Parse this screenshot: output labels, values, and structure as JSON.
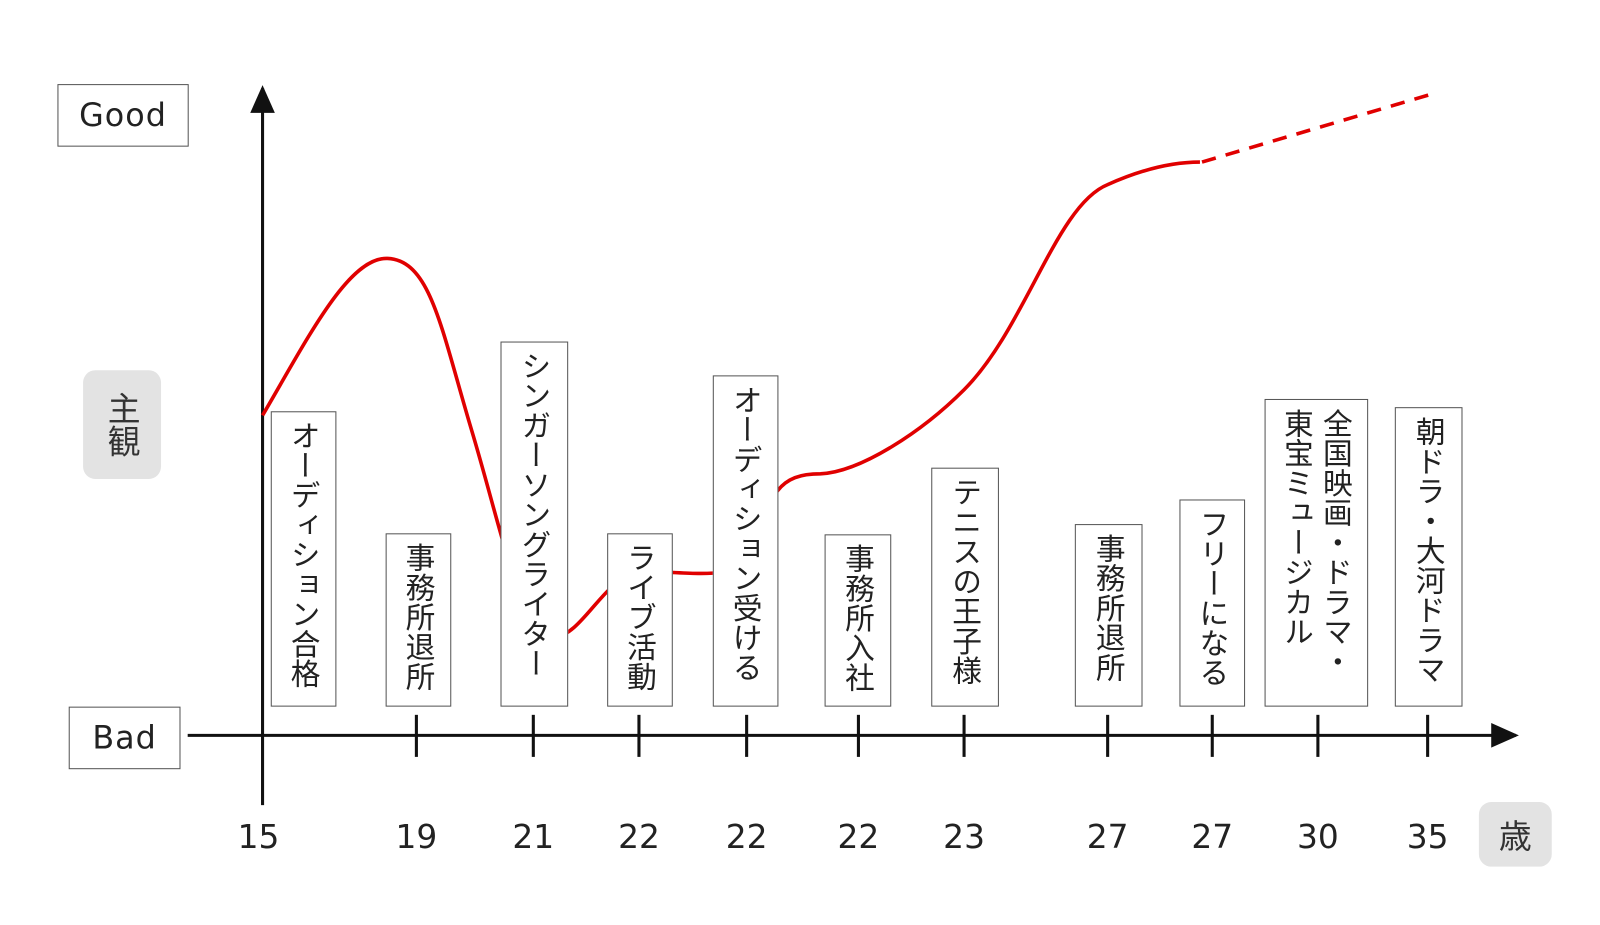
{
  "y_axis": {
    "top": "Good",
    "bottom": "Bad",
    "title": "主観"
  },
  "x_axis": {
    "unit": "歳"
  },
  "events": [
    {
      "age": "15",
      "lines": [
        "オーディション合格"
      ]
    },
    {
      "age": "19",
      "lines": [
        "事務所退所"
      ]
    },
    {
      "age": "21",
      "lines": [
        "シンガーソングライター"
      ]
    },
    {
      "age": "22",
      "lines": [
        "ライブ活動"
      ]
    },
    {
      "age": "22",
      "lines": [
        "オーディション受ける"
      ]
    },
    {
      "age": "22",
      "lines": [
        "事務所入社"
      ]
    },
    {
      "age": "23",
      "lines": [
        "テニスの王子様"
      ]
    },
    {
      "age": "27",
      "lines": [
        "事務所退所"
      ]
    },
    {
      "age": "27",
      "lines": [
        "フリーになる"
      ]
    },
    {
      "age": "30",
      "lines": [
        "全国映画・ドラマ・",
        "東宝ミュージカル"
      ]
    },
    {
      "age": "35",
      "lines": [
        "朝ドラ・大河ドラマ"
      ]
    }
  ]
}
